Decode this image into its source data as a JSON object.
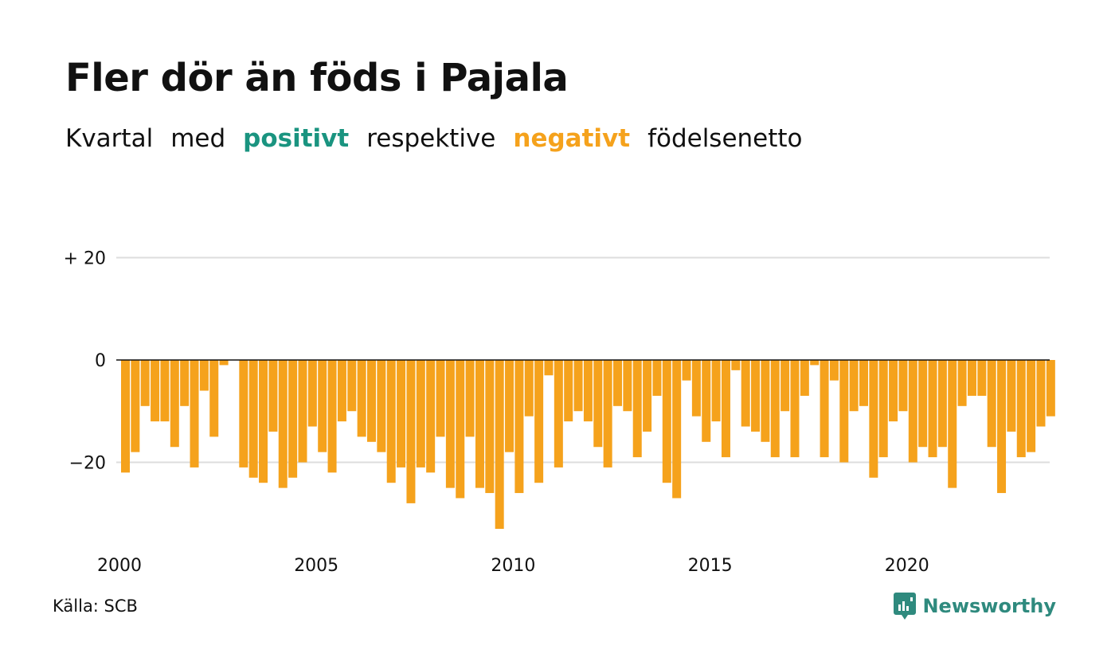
{
  "title": "Fler dör än föds i Pajala",
  "subtitle": {
    "part1": "Kvartal",
    "part2": "med",
    "positive": "positivt",
    "part3": "respektive",
    "negative": "negativt",
    "part4": "födelsenetto"
  },
  "colors": {
    "positive": "#1a9480",
    "negative": "#f5a21c",
    "grid": "#dddddd",
    "zero": "#111111"
  },
  "source": "Källa: SCB",
  "brand": {
    "name": "Newsworthy",
    "icon": "newsworthy-logo-icon"
  },
  "chart_data": {
    "type": "bar",
    "xlabel": "",
    "ylabel": "",
    "ylim": [
      -35,
      30
    ],
    "yticks": [
      {
        "value": 20,
        "label": "+ 20"
      },
      {
        "value": 0,
        "label": "0"
      },
      {
        "value": -20,
        "label": "−20"
      }
    ],
    "xticks": [
      {
        "year": 2000,
        "label": "2000"
      },
      {
        "year": 2005,
        "label": "2005"
      },
      {
        "year": 2010,
        "label": "2010"
      },
      {
        "year": 2015,
        "label": "2015"
      },
      {
        "year": 2020,
        "label": "2020"
      }
    ],
    "start_year": 2000,
    "quarters_per_year": 4,
    "values": [
      -22,
      -18,
      -9,
      -12,
      -12,
      -17,
      -9,
      -21,
      -6,
      -15,
      -1,
      0,
      -21,
      -23,
      -24,
      -14,
      -25,
      -23,
      -20,
      -13,
      -18,
      -22,
      -12,
      -10,
      -15,
      -16,
      -18,
      -24,
      -21,
      -28,
      -21,
      -22,
      -15,
      -25,
      -27,
      -15,
      -25,
      -26,
      -33,
      -18,
      -26,
      -11,
      -24,
      -3,
      -21,
      -12,
      -10,
      -12,
      -17,
      -21,
      -9,
      -10,
      -19,
      -14,
      -7,
      -24,
      -27,
      -4,
      -11,
      -16,
      -12,
      -19,
      -2,
      -13,
      -14,
      -16,
      -19,
      -10,
      -19,
      -7,
      -1,
      -19,
      -4,
      -20,
      -10,
      -9,
      -23,
      -19,
      -12,
      -10,
      -20,
      -17,
      -19,
      -17,
      -25,
      -9,
      -7,
      -7,
      -17,
      -26,
      -14,
      -19,
      -18,
      -13,
      -11
    ]
  }
}
